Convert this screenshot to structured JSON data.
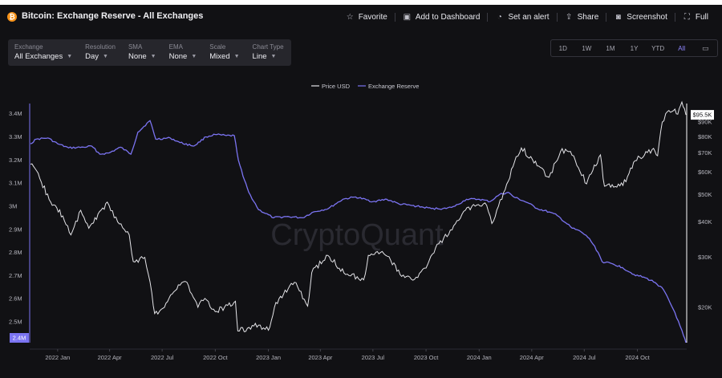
{
  "header": {
    "title": "Bitcoin: Exchange Reserve - All Exchanges",
    "actions": [
      {
        "label": "Favorite",
        "icon": "star-icon",
        "glyph": "☆"
      },
      {
        "label": "Add to Dashboard",
        "icon": "dashboard-icon",
        "glyph": "▣"
      },
      {
        "label": "Set an alert",
        "icon": "bell-icon",
        "glyph": "◔"
      },
      {
        "label": "Share",
        "icon": "share-icon",
        "glyph": "⇪"
      },
      {
        "label": "Screenshot",
        "icon": "camera-icon",
        "glyph": "◙"
      },
      {
        "label": "Full",
        "icon": "fullscreen-icon",
        "glyph": "⛶"
      }
    ]
  },
  "filters": [
    {
      "label": "Exchange",
      "value": "All Exchanges"
    },
    {
      "label": "Resolution",
      "value": "Day"
    },
    {
      "label": "SMA",
      "value": "None"
    },
    {
      "label": "EMA",
      "value": "None"
    },
    {
      "label": "Scale",
      "value": "Mixed"
    },
    {
      "label": "Chart Type",
      "value": "Line"
    }
  ],
  "ranges": [
    "1D",
    "1W",
    "1M",
    "1Y",
    "YTD",
    "All"
  ],
  "active_range": "All",
  "calendar_icon": "calendar-icon",
  "watermark": "CryptoQuant",
  "colors": {
    "reserve": "#7b74f2",
    "price": "#e4e4e8",
    "axis_text": "#b6b6be",
    "grid": "#26262c"
  },
  "chart_data": {
    "type": "line",
    "legend_position": "top-center",
    "grid": false,
    "x_ticks": [
      "2022 Jan",
      "2022 Apr",
      "2022 Jul",
      "2022 Oct",
      "2023 Jan",
      "2023 Apr",
      "2023 Jul",
      "2023 Oct",
      "2024 Jan",
      "2024 Apr",
      "2024 Jul",
      "2024 Oct"
    ],
    "x_range": [
      "2021-11-15",
      "2024-12-24"
    ],
    "left_axis": {
      "ticks": [
        "3.4M",
        "3.3M",
        "3.2M",
        "3.1M",
        "3M",
        "2.9M",
        "2.8M",
        "2.7M",
        "2.6M",
        "2.5M"
      ],
      "range": [
        2410000,
        3430000
      ],
      "last_value_label": "2.4M"
    },
    "right_axis": {
      "scale": "log",
      "ticks": [
        "$90K",
        "$80K",
        "$70K",
        "$60K",
        "$50K",
        "$40K",
        "$30K",
        "$20K"
      ],
      "range": [
        15000,
        102000
      ],
      "last_value_label": "$95.5K"
    },
    "series": [
      {
        "name": "Price USD",
        "axis": "right",
        "points": [
          [
            "2021-11-15",
            64000
          ],
          [
            "2021-12-01",
            57000
          ],
          [
            "2021-12-20",
            47000
          ],
          [
            "2022-01-10",
            42000
          ],
          [
            "2022-01-24",
            36000
          ],
          [
            "2022-02-10",
            44000
          ],
          [
            "2022-02-24",
            38000
          ],
          [
            "2022-03-28",
            47000
          ],
          [
            "2022-04-15",
            40000
          ],
          [
            "2022-05-05",
            36000
          ],
          [
            "2022-05-12",
            29000
          ],
          [
            "2022-06-01",
            30000
          ],
          [
            "2022-06-13",
            22500
          ],
          [
            "2022-06-18",
            19000
          ],
          [
            "2022-07-05",
            20000
          ],
          [
            "2022-07-29",
            24000
          ],
          [
            "2022-08-13",
            24500
          ],
          [
            "2022-09-01",
            20000
          ],
          [
            "2022-09-13",
            21500
          ],
          [
            "2022-10-01",
            19300
          ],
          [
            "2022-11-05",
            21000
          ],
          [
            "2022-11-09",
            16500
          ],
          [
            "2022-12-15",
            17300
          ],
          [
            "2023-01-01",
            16600
          ],
          [
            "2023-01-14",
            20800
          ],
          [
            "2023-02-15",
            24500
          ],
          [
            "2023-03-10",
            20200
          ],
          [
            "2023-03-17",
            26500
          ],
          [
            "2023-04-14",
            30500
          ],
          [
            "2023-05-12",
            26400
          ],
          [
            "2023-06-15",
            25000
          ],
          [
            "2023-06-23",
            30500
          ],
          [
            "2023-07-14",
            31200
          ],
          [
            "2023-08-01",
            29200
          ],
          [
            "2023-08-17",
            26100
          ],
          [
            "2023-09-11",
            25100
          ],
          [
            "2023-10-01",
            27500
          ],
          [
            "2023-10-23",
            33500
          ],
          [
            "2023-11-15",
            37500
          ],
          [
            "2023-12-08",
            44000
          ],
          [
            "2024-01-11",
            46700
          ],
          [
            "2024-01-23",
            39500
          ],
          [
            "2024-02-15",
            52000
          ],
          [
            "2024-03-05",
            68000
          ],
          [
            "2024-03-14",
            73000
          ],
          [
            "2024-04-13",
            63000
          ],
          [
            "2024-05-01",
            57500
          ],
          [
            "2024-05-21",
            71000
          ],
          [
            "2024-06-07",
            71000
          ],
          [
            "2024-07-05",
            54500
          ],
          [
            "2024-07-29",
            69000
          ],
          [
            "2024-08-05",
            53500
          ],
          [
            "2024-09-06",
            53800
          ],
          [
            "2024-09-27",
            65800
          ],
          [
            "2024-10-29",
            72700
          ],
          [
            "2024-11-05",
            68500
          ],
          [
            "2024-11-13",
            90000
          ],
          [
            "2024-11-22",
            98000
          ],
          [
            "2024-12-05",
            100000
          ],
          [
            "2024-12-10",
            96000
          ],
          [
            "2024-12-17",
            106000
          ],
          [
            "2024-12-24",
            95500
          ]
        ]
      },
      {
        "name": "Exchange Reserve",
        "axis": "left",
        "points": [
          [
            "2021-11-15",
            3270000
          ],
          [
            "2021-11-25",
            3290000
          ],
          [
            "2021-12-15",
            3295000
          ],
          [
            "2022-01-01",
            3270000
          ],
          [
            "2022-01-20",
            3252000
          ],
          [
            "2022-02-15",
            3255000
          ],
          [
            "2022-03-01",
            3260000
          ],
          [
            "2022-03-15",
            3225000
          ],
          [
            "2022-03-31",
            3230000
          ],
          [
            "2022-04-20",
            3255000
          ],
          [
            "2022-05-08",
            3225000
          ],
          [
            "2022-05-20",
            3320000
          ],
          [
            "2022-06-10",
            3370000
          ],
          [
            "2022-06-20",
            3290000
          ],
          [
            "2022-07-15",
            3295000
          ],
          [
            "2022-08-01",
            3275000
          ],
          [
            "2022-08-25",
            3260000
          ],
          [
            "2022-09-15",
            3300000
          ],
          [
            "2022-10-01",
            3310000
          ],
          [
            "2022-10-20",
            3305000
          ],
          [
            "2022-11-03",
            3305000
          ],
          [
            "2022-11-10",
            3200000
          ],
          [
            "2022-11-18",
            3130000
          ],
          [
            "2022-11-28",
            3060000
          ],
          [
            "2022-12-15",
            2985000
          ],
          [
            "2023-01-10",
            2950000
          ],
          [
            "2023-02-01",
            2955000
          ],
          [
            "2023-03-01",
            2950000
          ],
          [
            "2023-03-20",
            2975000
          ],
          [
            "2023-04-15",
            2990000
          ],
          [
            "2023-05-10",
            3030000
          ],
          [
            "2023-06-01",
            3040000
          ],
          [
            "2023-07-01",
            3020000
          ],
          [
            "2023-07-25",
            3030000
          ],
          [
            "2023-08-15",
            3010000
          ],
          [
            "2023-09-15",
            3000000
          ],
          [
            "2023-10-10",
            2990000
          ],
          [
            "2023-11-05",
            2990000
          ],
          [
            "2023-11-20",
            3000000
          ],
          [
            "2023-12-10",
            3030000
          ],
          [
            "2024-01-01",
            3030000
          ],
          [
            "2024-01-20",
            3020000
          ],
          [
            "2024-02-05",
            3050000
          ],
          [
            "2024-02-20",
            3060000
          ],
          [
            "2024-03-01",
            3040000
          ],
          [
            "2024-03-25",
            3015000
          ],
          [
            "2024-04-10",
            2990000
          ],
          [
            "2024-05-01",
            2975000
          ],
          [
            "2024-05-15",
            2960000
          ],
          [
            "2024-06-10",
            2905000
          ],
          [
            "2024-06-25",
            2890000
          ],
          [
            "2024-07-10",
            2860000
          ],
          [
            "2024-07-25",
            2800000
          ],
          [
            "2024-08-01",
            2760000
          ],
          [
            "2024-08-20",
            2750000
          ],
          [
            "2024-09-05",
            2735000
          ],
          [
            "2024-09-25",
            2705000
          ],
          [
            "2024-10-15",
            2690000
          ],
          [
            "2024-11-01",
            2670000
          ],
          [
            "2024-11-15",
            2640000
          ],
          [
            "2024-12-05",
            2540000
          ],
          [
            "2024-12-20",
            2440000
          ],
          [
            "2024-12-24",
            2410000
          ]
        ]
      }
    ]
  }
}
